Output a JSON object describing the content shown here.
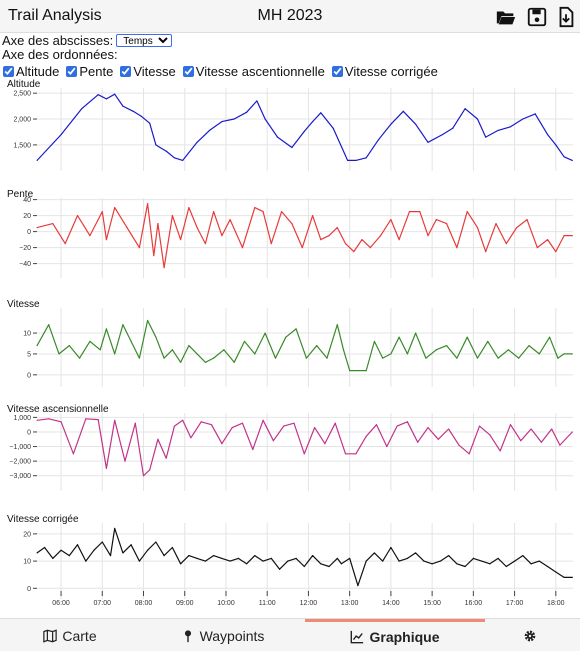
{
  "header": {
    "app_title": "Trail Analysis",
    "file_title": "MH 2023",
    "icons": [
      "folder-open-icon",
      "save-icon",
      "download-icon"
    ]
  },
  "controls": {
    "x_axis_label": "Axe des abscisses:",
    "x_axis_value": "Temps",
    "y_axis_label": "Axe des ordonnées:",
    "checkboxes": [
      {
        "label": "Altitude",
        "checked": true
      },
      {
        "label": "Pente",
        "checked": true
      },
      {
        "label": "Vitesse",
        "checked": true
      },
      {
        "label": "Vitesse ascentionnelle",
        "checked": true
      },
      {
        "label": "Vitesse corrigée",
        "checked": true
      }
    ]
  },
  "chart_data": {
    "type": "line",
    "x_ticks": [
      "06:00",
      "07:00",
      "08:00",
      "09:00",
      "10:00",
      "11:00",
      "12:00",
      "13:00",
      "14:00",
      "15:00",
      "16:00",
      "17:00",
      "18:00"
    ],
    "xlim": [
      "05:25",
      "18:25"
    ],
    "grid": true,
    "panels": [
      {
        "title": "Altitude",
        "color": "#1a1acc",
        "ylim": [
          1150,
          2600
        ],
        "yticks": [
          1500,
          2000,
          2500
        ],
        "ytick_labels": [
          "1,500",
          "2,000",
          "2,500"
        ],
        "x": [
          5.42,
          6.0,
          6.5,
          6.9,
          7.1,
          7.3,
          7.5,
          7.75,
          7.95,
          8.15,
          8.3,
          8.4,
          8.55,
          8.75,
          8.95,
          9.3,
          9.6,
          9.9,
          10.2,
          10.5,
          10.75,
          10.95,
          11.25,
          11.6,
          11.9,
          12.1,
          12.3,
          12.6,
          12.95,
          13.15,
          13.4,
          13.7,
          14.0,
          14.3,
          14.6,
          14.9,
          15.25,
          15.5,
          15.8,
          16.1,
          16.3,
          16.6,
          16.9,
          17.2,
          17.5,
          17.8,
          18.0,
          18.2,
          18.4
        ],
        "y": [
          1200,
          1700,
          2200,
          2470,
          2390,
          2480,
          2250,
          2150,
          2050,
          1920,
          1500,
          1450,
          1380,
          1250,
          1200,
          1550,
          1780,
          1950,
          2000,
          2130,
          2350,
          2000,
          1650,
          1450,
          1760,
          1950,
          2120,
          1820,
          1200,
          1200,
          1250,
          1600,
          1900,
          2150,
          1900,
          1550,
          1700,
          1820,
          2200,
          2000,
          1650,
          1780,
          1850,
          2000,
          2100,
          1700,
          1500,
          1270,
          1200
        ]
      },
      {
        "title": "Pente",
        "color": "#e83a3a",
        "ylim": [
          -48,
          42
        ],
        "yticks": [
          -40,
          -20,
          0,
          20,
          40
        ],
        "ytick_labels": [
          "−40",
          "−20",
          "0",
          "20",
          "40"
        ],
        "x": [
          5.42,
          5.8,
          6.1,
          6.4,
          6.7,
          7.0,
          7.1,
          7.3,
          7.6,
          7.9,
          8.1,
          8.25,
          8.35,
          8.5,
          8.7,
          8.9,
          9.1,
          9.3,
          9.5,
          9.7,
          9.9,
          10.1,
          10.4,
          10.7,
          10.9,
          11.1,
          11.35,
          11.6,
          11.85,
          12.1,
          12.3,
          12.5,
          12.7,
          12.9,
          13.1,
          13.3,
          13.5,
          13.75,
          14.0,
          14.2,
          14.45,
          14.7,
          14.9,
          15.1,
          15.35,
          15.6,
          15.85,
          16.1,
          16.3,
          16.55,
          16.8,
          17.05,
          17.3,
          17.55,
          17.8,
          18.0,
          18.2,
          18.4
        ],
        "y": [
          5,
          10,
          -15,
          20,
          -5,
          25,
          -10,
          30,
          5,
          -20,
          35,
          -30,
          10,
          -45,
          20,
          -10,
          30,
          5,
          -15,
          25,
          -5,
          15,
          -20,
          30,
          25,
          -15,
          25,
          10,
          -20,
          20,
          -10,
          -5,
          5,
          -15,
          -25,
          -10,
          -20,
          -5,
          15,
          -10,
          25,
          25,
          -5,
          15,
          10,
          -20,
          25,
          5,
          -25,
          10,
          -15,
          5,
          15,
          -20,
          -10,
          -25,
          -5,
          -5
        ]
      },
      {
        "title": "Vitesse",
        "color": "#3a8a2a",
        "ylim": [
          -1,
          16
        ],
        "yticks": [
          0,
          5,
          10
        ],
        "ytick_labels": [
          "0",
          "5",
          "10"
        ],
        "x": [
          5.42,
          5.7,
          5.95,
          6.2,
          6.45,
          6.7,
          6.95,
          7.1,
          7.3,
          7.5,
          7.7,
          7.9,
          8.1,
          8.3,
          8.5,
          8.7,
          8.9,
          9.1,
          9.3,
          9.5,
          9.7,
          9.95,
          10.2,
          10.45,
          10.7,
          10.95,
          11.2,
          11.45,
          11.7,
          11.95,
          12.2,
          12.45,
          12.7,
          12.85,
          13.0,
          13.2,
          13.4,
          13.6,
          13.8,
          14.0,
          14.2,
          14.4,
          14.6,
          14.85,
          15.1,
          15.35,
          15.6,
          15.85,
          16.1,
          16.35,
          16.6,
          16.85,
          17.1,
          17.35,
          17.6,
          17.85,
          18.05,
          18.2,
          18.4
        ],
        "y": [
          7,
          12,
          5,
          7,
          4,
          8,
          6,
          11,
          5,
          12,
          8,
          4,
          13,
          9,
          4,
          6,
          3,
          7,
          5,
          3,
          4,
          6,
          3,
          8,
          5,
          10,
          4,
          9,
          11,
          4,
          7,
          4,
          12,
          6,
          1,
          1,
          1,
          8,
          4,
          5,
          9,
          5,
          10,
          4,
          6,
          7,
          4,
          9,
          4,
          8,
          4,
          6,
          4,
          7,
          5,
          9,
          4,
          5,
          5
        ]
      },
      {
        "title": "Vitesse ascensionnelle",
        "color": "#c2338a",
        "ylim": [
          -3500,
          1300
        ],
        "yticks": [
          -3000,
          -2000,
          -1000,
          0,
          1000
        ],
        "ytick_labels": [
          "−3,000",
          "−2,000",
          "−1,000",
          "0",
          "1,000"
        ],
        "x": [
          5.42,
          5.7,
          6.0,
          6.3,
          6.6,
          6.9,
          7.1,
          7.3,
          7.55,
          7.8,
          8.0,
          8.15,
          8.35,
          8.55,
          8.75,
          8.95,
          9.15,
          9.4,
          9.65,
          9.9,
          10.15,
          10.4,
          10.65,
          10.9,
          11.15,
          11.4,
          11.65,
          11.9,
          12.15,
          12.4,
          12.65,
          12.9,
          13.15,
          13.4,
          13.65,
          13.9,
          14.15,
          14.4,
          14.65,
          14.9,
          15.15,
          15.4,
          15.65,
          15.9,
          16.15,
          16.4,
          16.65,
          16.9,
          17.15,
          17.4,
          17.65,
          17.9,
          18.1,
          18.4
        ],
        "y": [
          800,
          900,
          700,
          -1500,
          900,
          850,
          -2500,
          800,
          -2000,
          600,
          -3000,
          -2600,
          -500,
          -1800,
          400,
          800,
          -400,
          700,
          500,
          -800,
          300,
          600,
          -1200,
          800,
          -600,
          400,
          600,
          -1500,
          300,
          -800,
          600,
          -1500,
          -1500,
          -300,
          500,
          -1000,
          400,
          700,
          -700,
          300,
          -500,
          200,
          -900,
          -1500,
          400,
          -200,
          -1300,
          500,
          -600,
          200,
          -700,
          200,
          -900,
          0
        ]
      },
      {
        "title": "Vitesse corrigée",
        "color": "#111111",
        "ylim": [
          -1,
          24
        ],
        "yticks": [
          0,
          10,
          20
        ],
        "ytick_labels": [
          "0",
          "10",
          "20"
        ],
        "x": [
          5.42,
          5.6,
          5.8,
          6.0,
          6.2,
          6.4,
          6.6,
          6.8,
          7.0,
          7.2,
          7.3,
          7.5,
          7.7,
          7.9,
          8.1,
          8.3,
          8.5,
          8.7,
          8.9,
          9.1,
          9.3,
          9.5,
          9.7,
          9.9,
          10.1,
          10.3,
          10.5,
          10.7,
          10.9,
          11.1,
          11.3,
          11.5,
          11.7,
          11.9,
          12.1,
          12.3,
          12.5,
          12.7,
          12.8,
          13.0,
          13.2,
          13.4,
          13.6,
          13.8,
          14.0,
          14.2,
          14.4,
          14.6,
          14.8,
          15.0,
          15.2,
          15.4,
          15.6,
          15.8,
          16.0,
          16.2,
          16.4,
          16.6,
          16.8,
          17.0,
          17.2,
          17.4,
          17.6,
          17.8,
          18.0,
          18.2,
          18.4
        ],
        "y": [
          13,
          15,
          11,
          14,
          12,
          16,
          10,
          14,
          17,
          12,
          22,
          13,
          16,
          10,
          14,
          17,
          12,
          15,
          9,
          12,
          11,
          10,
          12,
          11,
          10,
          11,
          9,
          12,
          10,
          11,
          7,
          10,
          11,
          8,
          12,
          9,
          8,
          11,
          9,
          11,
          1,
          10,
          13,
          10,
          15,
          10,
          11,
          13,
          10,
          9,
          10,
          12,
          9,
          8,
          11,
          10,
          9,
          11,
          8,
          10,
          12,
          9,
          10,
          8,
          6,
          4,
          4
        ]
      }
    ]
  },
  "footer": {
    "tabs": [
      {
        "label": "Carte",
        "icon": "map-icon"
      },
      {
        "label": "Waypoints",
        "icon": "pin-icon"
      },
      {
        "label": "Graphique",
        "icon": "chart-icon",
        "active": true
      },
      {
        "label": "",
        "icon": "gear-icon"
      }
    ]
  }
}
